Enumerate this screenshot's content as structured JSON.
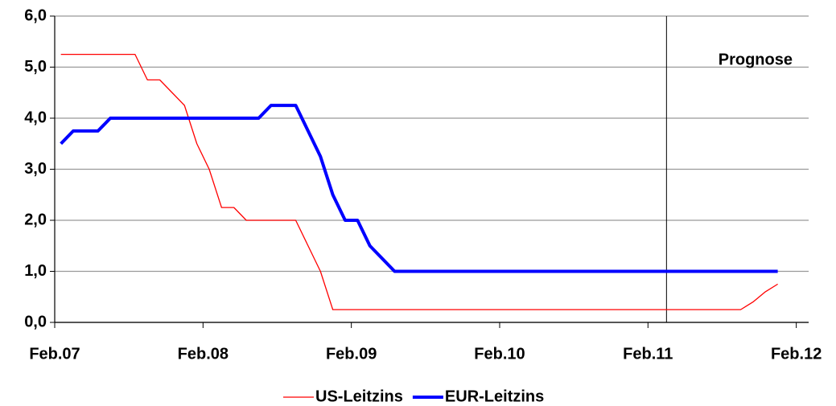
{
  "chart_data": {
    "type": "line",
    "x": [
      "2007-02",
      "2007-03",
      "2007-04",
      "2007-05",
      "2007-06",
      "2007-07",
      "2007-08",
      "2007-09",
      "2007-10",
      "2007-11",
      "2007-12",
      "2008-01",
      "2008-02",
      "2008-03",
      "2008-04",
      "2008-05",
      "2008-06",
      "2008-07",
      "2008-08",
      "2008-09",
      "2008-10",
      "2008-11",
      "2008-12",
      "2009-01",
      "2009-02",
      "2009-03",
      "2009-04",
      "2009-05",
      "2009-06",
      "2009-07",
      "2009-08",
      "2009-09",
      "2009-10",
      "2009-11",
      "2009-12",
      "2010-01",
      "2010-02",
      "2010-03",
      "2010-04",
      "2010-05",
      "2010-06",
      "2010-07",
      "2010-08",
      "2010-09",
      "2010-10",
      "2010-11",
      "2010-12",
      "2011-01",
      "2011-02",
      "2011-03",
      "2011-04",
      "2011-05",
      "2011-06",
      "2011-07",
      "2011-08",
      "2011-09",
      "2011-10",
      "2011-11",
      "2011-12"
    ],
    "series": [
      {
        "name": "US-Leitzins",
        "color": "#ff0000",
        "width": 1.3,
        "values": [
          5.25,
          5.25,
          5.25,
          5.25,
          5.25,
          5.25,
          5.25,
          4.75,
          4.75,
          4.5,
          4.25,
          3.5,
          3.0,
          2.25,
          2.25,
          2.0,
          2.0,
          2.0,
          2.0,
          2.0,
          1.5,
          1.0,
          0.25,
          0.25,
          0.25,
          0.25,
          0.25,
          0.25,
          0.25,
          0.25,
          0.25,
          0.25,
          0.25,
          0.25,
          0.25,
          0.25,
          0.25,
          0.25,
          0.25,
          0.25,
          0.25,
          0.25,
          0.25,
          0.25,
          0.25,
          0.25,
          0.25,
          0.25,
          0.25,
          0.25,
          0.25,
          0.25,
          0.25,
          0.25,
          0.25,
          0.25,
          0.4,
          0.6,
          0.75
        ]
      },
      {
        "name": "EUR-Leitzins",
        "color": "#0000ff",
        "width": 4,
        "values": [
          3.5,
          3.75,
          3.75,
          3.75,
          4.0,
          4.0,
          4.0,
          4.0,
          4.0,
          4.0,
          4.0,
          4.0,
          4.0,
          4.0,
          4.0,
          4.0,
          4.0,
          4.25,
          4.25,
          4.25,
          3.75,
          3.25,
          2.5,
          2.0,
          2.0,
          1.5,
          1.25,
          1.0,
          1.0,
          1.0,
          1.0,
          1.0,
          1.0,
          1.0,
          1.0,
          1.0,
          1.0,
          1.0,
          1.0,
          1.0,
          1.0,
          1.0,
          1.0,
          1.0,
          1.0,
          1.0,
          1.0,
          1.0,
          1.0,
          1.0,
          1.0,
          1.0,
          1.0,
          1.0,
          1.0,
          1.0,
          1.0,
          1.0,
          1.0
        ]
      }
    ],
    "xlim": [
      "2007-02",
      "2012-03"
    ],
    "xticks": [
      {
        "value": "2007-02",
        "label": "Feb.07"
      },
      {
        "value": "2008-02",
        "label": "Feb.08"
      },
      {
        "value": "2009-02",
        "label": "Feb.09"
      },
      {
        "value": "2010-02",
        "label": "Feb.10"
      },
      {
        "value": "2011-02",
        "label": "Feb.11"
      },
      {
        "value": "2012-02",
        "label": "Feb.12"
      }
    ],
    "ylim": [
      0,
      6
    ],
    "yticks": [
      {
        "value": 0,
        "label": "0,0"
      },
      {
        "value": 1,
        "label": "1,0"
      },
      {
        "value": 2,
        "label": "2,0"
      },
      {
        "value": 3,
        "label": "3,0"
      },
      {
        "value": 4,
        "label": "4,0"
      },
      {
        "value": 5,
        "label": "5,0"
      },
      {
        "value": 6,
        "label": "6,0"
      }
    ],
    "grid": true,
    "legend": "bottom",
    "annotations": [
      {
        "text": "Prognose",
        "x": "2011-03"
      }
    ]
  }
}
